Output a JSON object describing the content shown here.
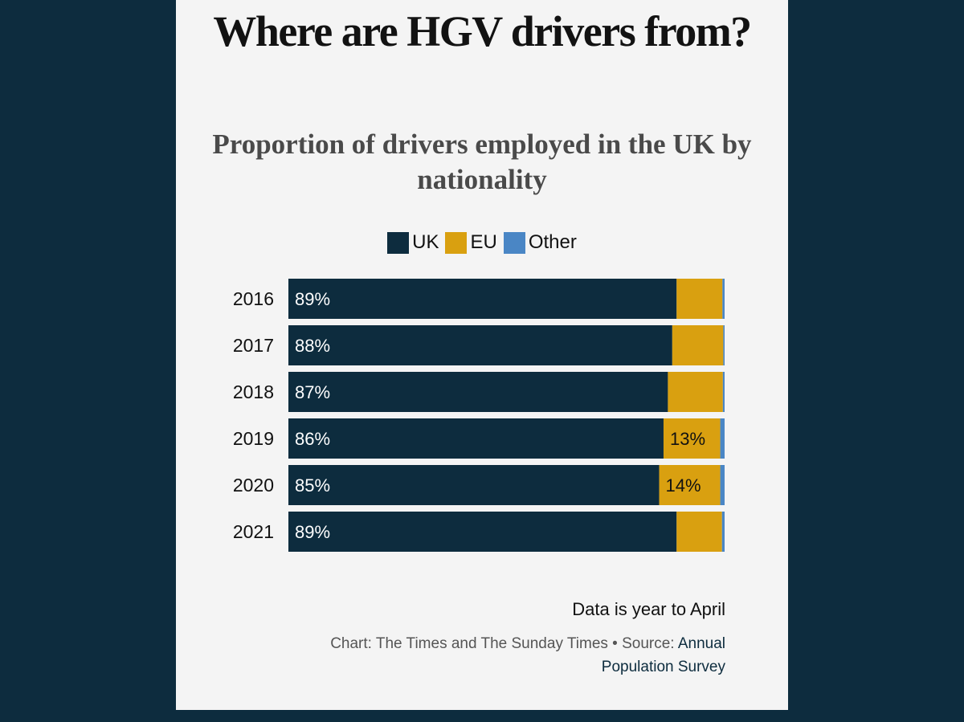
{
  "chart_data": {
    "type": "bar",
    "orientation": "horizontal",
    "stacked": true,
    "title": "Where are HGV drivers from?",
    "subtitle": "Proportion of drivers employed in the UK by nationality",
    "categories": [
      "2016",
      "2017",
      "2018",
      "2019",
      "2020",
      "2021"
    ],
    "series": [
      {
        "name": "UK",
        "color": "#0d2c3e",
        "values": [
          89,
          88,
          87,
          86,
          85,
          89
        ]
      },
      {
        "name": "EU",
        "color": "#d9a010",
        "values": [
          10.5,
          11.7,
          12.6,
          13,
          14,
          10.4
        ]
      },
      {
        "name": "Other",
        "color": "#4a86c5",
        "values": [
          0.5,
          0.3,
          0.4,
          1,
          1,
          0.6
        ]
      }
    ],
    "data_labels": {
      "UK": [
        "89%",
        "88%",
        "87%",
        "86%",
        "85%",
        "89%"
      ],
      "EU": [
        "",
        "",
        "",
        "13%",
        "14%",
        ""
      ]
    },
    "xlim": [
      0,
      100
    ],
    "legend_position": "top-center",
    "grid": false,
    "note": "Data is year to April",
    "credit_prefix": "Chart: The Times and The Sunday Times • Source: ",
    "credit_source": "Annual Population Survey"
  }
}
